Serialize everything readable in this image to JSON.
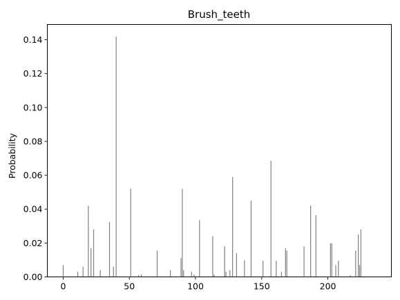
{
  "colors": {
    "bar": "#7f7f7f",
    "axis": "#000000",
    "background": "#ffffff"
  },
  "chart_data": {
    "type": "bar",
    "title": "Brush_teeth",
    "xlabel": "",
    "ylabel": "Probability",
    "xlim": [
      -12,
      248
    ],
    "ylim": [
      0,
      0.149
    ],
    "xticks": [
      0,
      50,
      100,
      150,
      200
    ],
    "xtick_labels": [
      "0",
      "50",
      "100",
      "150",
      "200"
    ],
    "yticks": [
      0.0,
      0.02,
      0.04,
      0.06,
      0.08,
      0.1,
      0.12,
      0.14
    ],
    "ytick_labels": [
      "0.00",
      "0.02",
      "0.04",
      "0.06",
      "0.08",
      "0.10",
      "0.12",
      "0.14"
    ],
    "grid": false,
    "legend": "none",
    "x": [
      0,
      11,
      15,
      19,
      21,
      23,
      28,
      35,
      38,
      40,
      51,
      57,
      59,
      71,
      81,
      89,
      90,
      91,
      97,
      99,
      103,
      113,
      114,
      122,
      123,
      126,
      128,
      131,
      137,
      142,
      151,
      157,
      161,
      165,
      168,
      169,
      182,
      187,
      191,
      202,
      203,
      206,
      208,
      217,
      221,
      223,
      224,
      225
    ],
    "values": [
      0.007,
      0.003,
      0.006,
      0.042,
      0.017,
      0.028,
      0.004,
      0.0325,
      0.006,
      0.142,
      0.052,
      0.001,
      0.0015,
      0.0155,
      0.004,
      0.011,
      0.052,
      0.004,
      0.003,
      0.0015,
      0.0335,
      0.024,
      0.0015,
      0.018,
      0.003,
      0.004,
      0.059,
      0.014,
      0.0098,
      0.045,
      0.0095,
      0.0685,
      0.0095,
      0.003,
      0.017,
      0.0155,
      0.018,
      0.042,
      0.0365,
      0.0198,
      0.0198,
      0.007,
      0.0095,
      0.001,
      0.0155,
      0.025,
      0.007,
      0.028
    ]
  }
}
